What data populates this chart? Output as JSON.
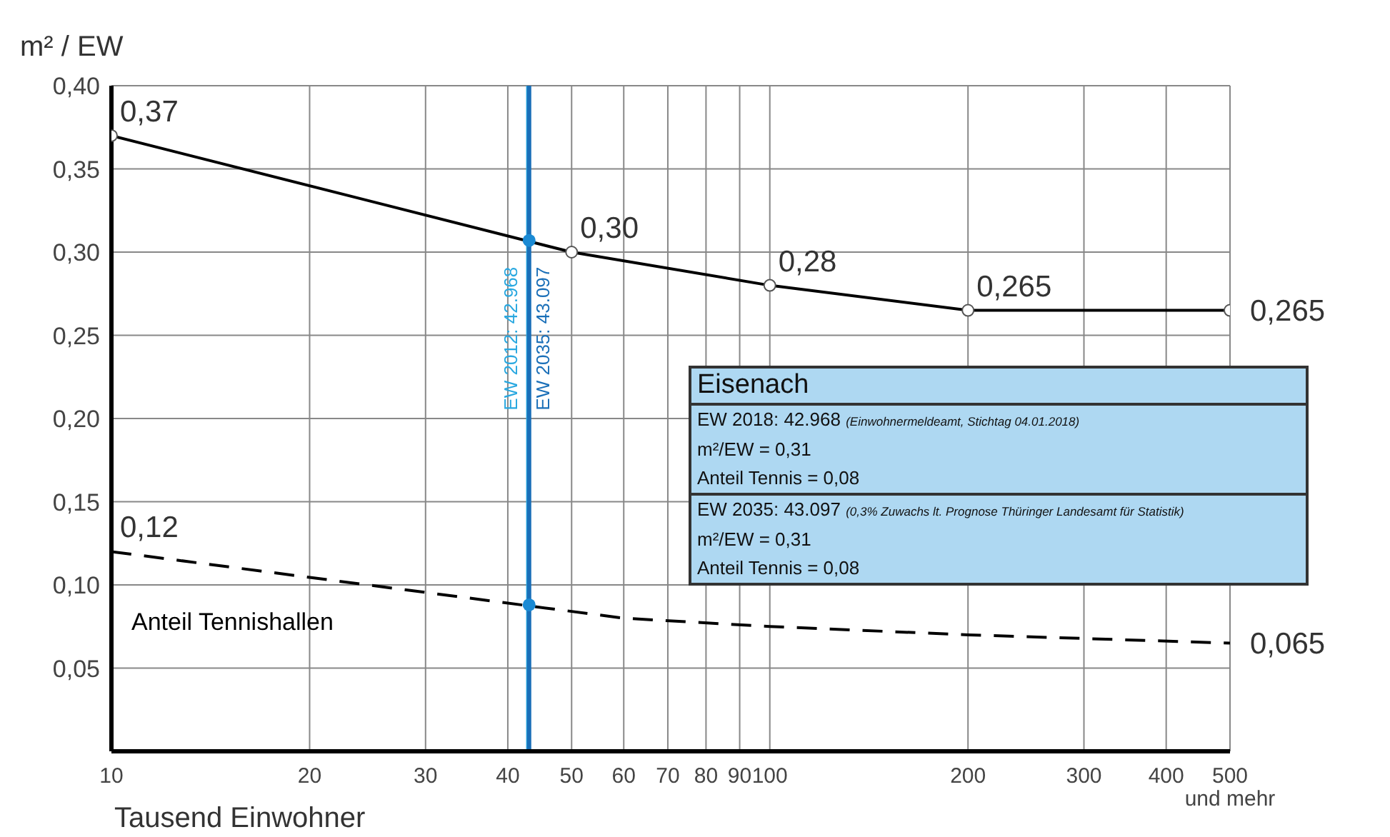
{
  "chart_data": {
    "type": "line",
    "ylabel": "m² / EW",
    "xlabel": "Tausend Einwohner",
    "log": "x",
    "grid": true,
    "legend": false,
    "xlim": [
      10,
      500
    ],
    "xticks": [
      10,
      20,
      30,
      40,
      50,
      60,
      70,
      80,
      90,
      100,
      200,
      300,
      400,
      {
        "value": 500,
        "label": "500 und mehr"
      }
    ],
    "ylim": [
      0,
      0.4
    ],
    "yticks": [
      {
        "value": 0.05,
        "label": "0,05"
      },
      {
        "value": 0.1,
        "label": "0,10"
      },
      {
        "value": 0.15,
        "label": "0,15"
      },
      {
        "value": 0.2,
        "label": "0,20"
      },
      {
        "value": 0.25,
        "label": "0,25"
      },
      {
        "value": 0.3,
        "label": "0,30"
      },
      {
        "value": 0.35,
        "label": "0,35"
      },
      {
        "value": 0.4,
        "label": "0,40"
      }
    ],
    "series": [
      {
        "color": "#000000",
        "marker": "circle",
        "line_style": "solid",
        "x": [
          10,
          50,
          100,
          200,
          500
        ],
        "values": [
          0.37,
          0.3,
          0.28,
          0.265,
          0.265
        ],
        "value_labels": [
          "0,37",
          "0,30",
          "0,28",
          "0,265",
          "0,265"
        ]
      },
      {
        "name": "Anteil Tennishallen",
        "color": "#000000",
        "marker": "none",
        "line_style": "dashed",
        "x": [
          10,
          60,
          100,
          200,
          500
        ],
        "values": [
          0.12,
          0.08,
          0.075,
          0.07,
          0.065
        ],
        "value_labels": [
          "0,12",
          null,
          null,
          null,
          "0,065"
        ]
      },
      {
        "type": "scatter",
        "color": "#1a8ad4",
        "marker": "circle",
        "x": [
          43.097,
          43.097
        ],
        "values": [
          0.307,
          0.088
        ]
      }
    ],
    "ref_lines": [
      {
        "axis": "x",
        "value": 42.968,
        "label": "EW 2012: 42.968",
        "color": "#29a8e0"
      },
      {
        "axis": "x",
        "value": 43.097,
        "label": "EW 2035: 43.097",
        "color": "#1a6fb8"
      }
    ],
    "annotations": [
      "Eisenach",
      "EW 2018: 42.968 (Einwohnermeldeamt, Stichtag 04.01.2018)",
      "m²/EW = 0,31",
      "Anteil Tennis = 0,08",
      "EW 2035: 43.097 (0,3% Zuwachs lt. Prognose Thüringer Landesamt für Statistik)",
      "m²/EW = 0,31",
      "Anteil Tennis = 0,08"
    ]
  }
}
